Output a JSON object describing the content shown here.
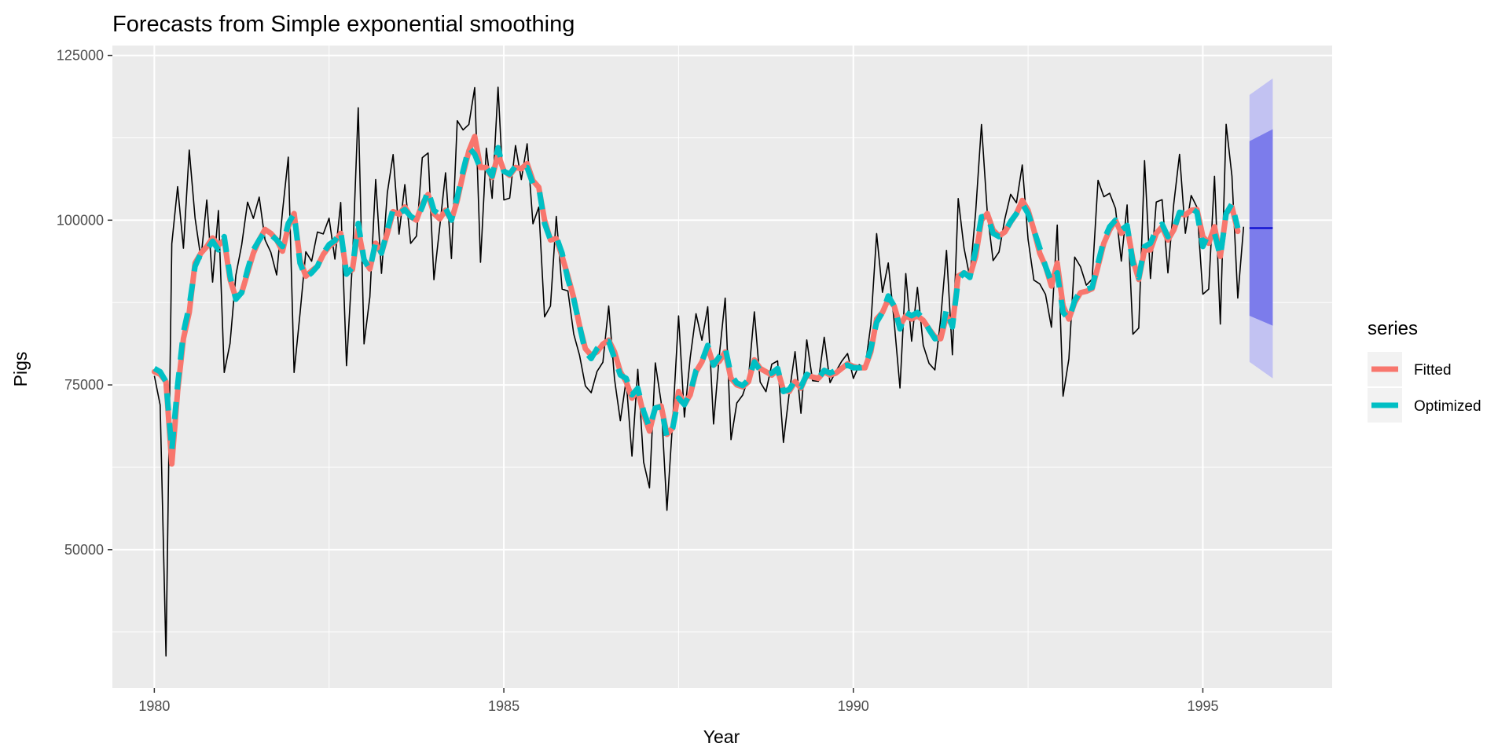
{
  "chart_data": {
    "type": "line",
    "title": "Forecasts from Simple exponential smoothing",
    "xlabel": "Year",
    "ylabel": "Pigs",
    "xlim": [
      1979.4,
      1996.85
    ],
    "ylim": [
      29000,
      126500
    ],
    "x_ticks": [
      1980,
      1985,
      1990,
      1995
    ],
    "x_tick_labels": [
      "1980",
      "1985",
      "1990",
      "1995"
    ],
    "y_ticks": [
      50000,
      75000,
      100000,
      125000
    ],
    "y_tick_labels": [
      "50000",
      "75000",
      "100000",
      "125000"
    ],
    "grid": true,
    "legend": {
      "title": "series",
      "position": "right"
    },
    "colors": {
      "panel": "#EBEBEB",
      "grid": "#FFFFFF",
      "actual": "#000000",
      "fitted": "#F8766D",
      "optimized": "#00BFC4",
      "forecast": "#0000CC",
      "pi80": "#7C7CEB",
      "pi95": "#C2C2F2"
    },
    "series": [
      {
        "name": "",
        "role": "actual",
        "x_start": 1980.0,
        "x_step": 0.0833333,
        "values": [
          76378,
          71947,
          33873,
          96428,
          105084,
          95741,
          110647,
          100331,
          94133,
          103055,
          90595,
          101457,
          76889,
          81291,
          91643,
          96228,
          102736,
          100264,
          103491,
          97027,
          95134,
          91680,
          101259,
          109564,
          76892,
          85773,
          95210,
          93771,
          98202,
          97906,
          100306,
          94089,
          102680,
          77919,
          93561,
          117062,
          81225,
          88357,
          106175,
          91922,
          104114,
          109959,
          97880,
          105386,
          96479,
          97580,
          109490,
          110191,
          90974,
          98981,
          107188,
          94177,
          115097,
          113696,
          114532,
          120110,
          93607,
          110925,
          103312,
          120184,
          103069,
          103351,
          111331,
          106161,
          111590,
          99447,
          101987,
          85333,
          86970,
          100561,
          89543,
          89265,
          82719,
          79498,
          74846,
          73819,
          77029,
          78446,
          86978,
          75878,
          69571,
          75722,
          64182,
          77357,
          63292,
          59380,
          78332,
          72381,
          55971,
          69750,
          85472,
          70133,
          79125,
          85805,
          81778,
          86852,
          69069,
          79556,
          88174,
          66698,
          72258,
          73445,
          76131,
          86082,
          75443,
          73969,
          78139,
          78646,
          66269,
          73776,
          80034,
          70694,
          81823,
          75640,
          75540,
          82229,
          75345,
          77034,
          78589,
          79769,
          75982,
          78074,
          77588,
          84100,
          97966,
          89051,
          93503,
          84747,
          74531,
          91900,
          81635,
          89797,
          81022,
          78265,
          77271,
          85043,
          95418,
          79568,
          103283,
          95770,
          91297,
          101244,
          114525,
          101139,
          93866,
          95171,
          100183,
          103926,
          102643,
          108387,
          97077,
          90901,
          90336,
          88732,
          83759,
          99267,
          73292,
          78943,
          94399,
          92937,
          90130,
          91055,
          106062,
          103560,
          104075,
          101783,
          93791,
          102313,
          82701,
          83626,
          109035,
          91142,
          102762,
          103113,
          92005,
          102407,
          109986,
          97998,
          103750,
          101975,
          88766,
          89538,
          106670,
          84230,
          114550,
          106670,
          88180,
          99000
        ]
      },
      {
        "name": "Fitted",
        "role": "fitted",
        "x_start": 1980.0,
        "x_step": 0.0833333,
        "values": [
          77000,
          76600,
          75500,
          63000,
          74000,
          82000,
          86000,
          93500,
          95000,
          96000,
          97300,
          96200,
          97000,
          91000,
          88200,
          89000,
          92000,
          95000,
          97000,
          98600,
          98000,
          97000,
          95300,
          99000,
          101000,
          94000,
          91500,
          92300,
          93000,
          94800,
          96000,
          96700,
          98000,
          92000,
          92500,
          98600,
          94000,
          92600,
          96500,
          95000,
          98000,
          101300,
          100900,
          102000,
          100500,
          100000,
          102500,
          103900,
          101000,
          100200,
          101500,
          100000,
          103000,
          107000,
          110500,
          112700,
          108000,
          108000,
          106500,
          110000,
          107500,
          106800,
          108000,
          107800,
          108600,
          106000,
          105000,
          100000,
          97000,
          97200,
          94500,
          91500,
          88200,
          84000,
          80500,
          79500,
          80000,
          81200,
          81800,
          80000,
          77000,
          75500,
          73000,
          74200,
          70500,
          68000,
          71500,
          71800,
          67500,
          68500,
          74000,
          72000,
          73500,
          77000,
          78500,
          80800,
          78000,
          78600,
          80000,
          76000,
          75000,
          74700,
          75500,
          78800,
          77500,
          77000,
          76500,
          77300,
          74200,
          74000,
          75500,
          74500,
          76500,
          76200,
          76000,
          77000,
          76500,
          76800,
          77500,
          78200,
          77800,
          77600,
          77600,
          80000,
          85000,
          86000,
          88000,
          87000,
          84000,
          85500,
          85000,
          85500,
          84800,
          83500,
          82300,
          82000,
          85500,
          84000,
          91500,
          92000,
          91500,
          94500,
          100000,
          101000,
          98500,
          97600,
          98200,
          99700,
          101000,
          103000,
          101500,
          98500,
          95000,
          93000,
          90000,
          93500,
          87000,
          85000,
          87500,
          89000,
          89200,
          89600,
          93000,
          96500,
          98500,
          100000,
          98000,
          99000,
          94000,
          91000,
          95500,
          95500,
          98000,
          99000,
          97000,
          98500,
          101000,
          100800,
          101500,
          101600,
          97500,
          96500,
          99000,
          94500,
          101000,
          102000,
          98300
        ]
      },
      {
        "name": "Optimized",
        "role": "optimized",
        "x_start": 1980.0,
        "x_step": 0.0833333,
        "values": [
          77500,
          77000,
          75500,
          65000,
          75000,
          83000,
          87000,
          93000,
          95000,
          95500,
          96800,
          95500,
          97500,
          91500,
          88000,
          89000,
          92500,
          95500,
          97000,
          98300,
          97800,
          97000,
          96000,
          99500,
          101000,
          93500,
          91300,
          92000,
          93000,
          95000,
          96300,
          96900,
          98400,
          91800,
          92800,
          99500,
          94000,
          92500,
          96800,
          95000,
          98500,
          101700,
          101000,
          101600,
          100600,
          100000,
          102000,
          104500,
          101500,
          100800,
          101800,
          100000,
          103500,
          107500,
          111000,
          110000,
          107800,
          108000,
          106700,
          111000,
          107400,
          107000,
          108200,
          107900,
          108000,
          105500,
          105000,
          99500,
          97000,
          97500,
          95000,
          91000,
          88000,
          84000,
          80000,
          79000,
          80500,
          81500,
          81600,
          79000,
          76500,
          76000,
          73500,
          74500,
          71000,
          68500,
          71500,
          71700,
          67000,
          68500,
          73000,
          72000,
          73800,
          77200,
          78600,
          81000,
          78000,
          79300,
          80700,
          76500,
          75300,
          74900,
          75800,
          78500,
          77200,
          76500,
          76800,
          77500,
          74000,
          74300,
          75700,
          74700,
          76600,
          76100,
          76000,
          77200,
          76800,
          77200,
          77800,
          78000,
          77600,
          77600,
          77700,
          80500,
          84500,
          86000,
          88500,
          87000,
          83500,
          86000,
          85500,
          86000,
          85000,
          83400,
          82000,
          82200,
          86500,
          83800,
          91000,
          92000,
          91300,
          95500,
          100500,
          100700,
          98000,
          97500,
          98200,
          99800,
          101000,
          102500,
          101000,
          98500,
          95800,
          93000,
          90600,
          92000,
          86000,
          85000,
          87800,
          89300,
          89500,
          89800,
          93500,
          97000,
          99000,
          100000,
          98500,
          99200,
          93500,
          91300,
          96000,
          96500,
          98600,
          99400,
          97500,
          98500,
          101200,
          101000,
          101800,
          101200,
          96000,
          98000,
          98000,
          94500,
          101000,
          102500,
          98800
        ]
      },
      {
        "name": "",
        "role": "forecast",
        "x": [
          1995.667,
          1996.0
        ],
        "values": [
          98800,
          98800
        ],
        "pi80_lower": [
          85500,
          84000
        ],
        "pi80_upper": [
          112000,
          113800
        ],
        "pi95_lower": [
          78500,
          76000
        ],
        "pi95_upper": [
          119000,
          121500
        ]
      }
    ]
  }
}
